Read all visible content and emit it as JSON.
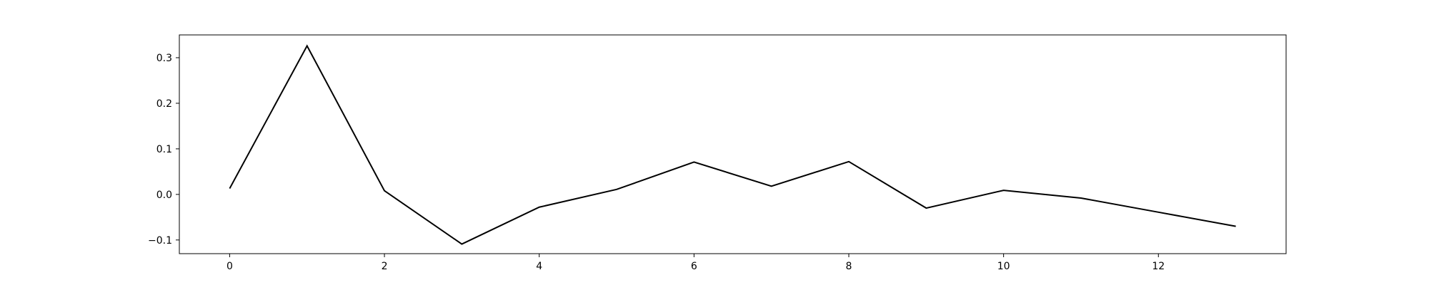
{
  "chart_data": {
    "type": "line",
    "title": "",
    "xlabel": "",
    "ylabel": "",
    "grid": false,
    "legend": "none",
    "xlim": [
      -0.65,
      13.65
    ],
    "ylim": [
      -0.13,
      0.35
    ],
    "xticks": [
      0,
      2,
      4,
      6,
      8,
      10,
      12
    ],
    "yticks": [
      -0.1,
      0.0,
      0.1,
      0.2,
      0.3
    ],
    "ytick_labels": [
      "−0.1",
      "0.0",
      "0.1",
      "0.2",
      "0.3"
    ],
    "line_color": "#000000",
    "series": [
      {
        "x": [
          0,
          1,
          2,
          3,
          4,
          5,
          6,
          7,
          8,
          9,
          10,
          11,
          12,
          13
        ],
        "values": [
          0.013,
          0.326,
          0.008,
          -0.109,
          -0.028,
          0.011,
          0.071,
          0.018,
          0.072,
          -0.03,
          0.009,
          -0.008,
          -0.039,
          -0.07
        ]
      }
    ]
  }
}
